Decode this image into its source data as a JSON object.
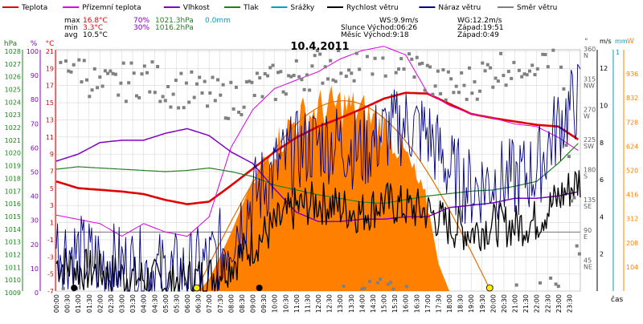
{
  "legend": [
    {
      "label": "Teplota",
      "color": "#e00000"
    },
    {
      "label": "Přízemní teplota",
      "color": "#e000e0"
    },
    {
      "label": "Vlhkost",
      "color": "#8000c0"
    },
    {
      "label": "Tlak",
      "color": "#208020"
    },
    {
      "label": "Srážky",
      "color": "#00a0c0"
    },
    {
      "label": "Rychlost větru",
      "color": "#000000"
    },
    {
      "label": "Náraz větru",
      "color": "#000080"
    },
    {
      "label": "Směr větru",
      "color": "#808080"
    }
  ],
  "stats": {
    "max_label": "max",
    "min_label": "min",
    "avg_label": "avg",
    "max_temp": "16.8°C",
    "max_hum": "70%",
    "max_press": "1021.3hPa",
    "max_rain": "0.0mm",
    "min_temp": "3.3°C",
    "min_hum": "30%",
    "min_press": "1016.2hPa",
    "avg_temp": "10.5°C"
  },
  "wind_info": {
    "ws": "WS:9.9m/s",
    "wg": "WG:12.2m/s",
    "sun": "Slunce Východ:06:26",
    "sun_set": "Západ:19:51",
    "moon": "Měsíc  Východ:9:18",
    "moon_set": "Západ:0:49"
  },
  "title": "10.4.2011",
  "xlabel": "čas",
  "colors": {
    "temp": "#e00000",
    "ground": "#e000e0",
    "hum": "#8000c0",
    "press": "#208020",
    "rain": "#00a0c0",
    "wind": "#000000",
    "gust": "#000080",
    "dir": "#808080",
    "solar": "#ff8000",
    "grid": "#d8d8d8"
  },
  "chart_data": {
    "type": "line",
    "title": "10.4.2011",
    "x_range": [
      "00:00",
      "24:00"
    ],
    "x_ticks": [
      "00:00",
      "00:30",
      "01:00",
      "01:30",
      "02:00",
      "02:30",
      "03:00",
      "03:30",
      "04:00",
      "04:30",
      "05:00",
      "05:30",
      "06:00",
      "06:30",
      "07:00",
      "07:30",
      "08:00",
      "08:30",
      "09:00",
      "09:30",
      "10:00",
      "10:30",
      "11:00",
      "11:30",
      "12:00",
      "12:30",
      "13:00",
      "13:30",
      "14:00",
      "14:30",
      "15:00",
      "15:30",
      "16:00",
      "16:30",
      "17:00",
      "17:30",
      "18:00",
      "18:30",
      "19:00",
      "19:30",
      "20:00",
      "20:30",
      "21:00",
      "21:30",
      "22:00",
      "22:30",
      "23:00",
      "23:30"
    ],
    "axes": {
      "pressure": {
        "unit": "hPa",
        "ticks": [
          "1028",
          "1027",
          "1026",
          "1025",
          "1024",
          "1023",
          "1022",
          "1021",
          "1020",
          "1019",
          "1018",
          "1017",
          "1016",
          "1015",
          "1014",
          "1013",
          "1012",
          "1011",
          "1010",
          "1009"
        ]
      },
      "humidity": {
        "unit": "%",
        "ticks": [
          "100",
          "90",
          "80",
          "70",
          "60",
          "50",
          "40",
          "30",
          "20",
          "10",
          "0"
        ]
      },
      "temperature": {
        "unit": "°C",
        "ticks": [
          "21",
          "19",
          "17",
          "15",
          "13",
          "11",
          "9",
          "7",
          "5",
          "3",
          "1",
          "-1",
          "-3",
          "-5",
          "-7"
        ]
      },
      "wind_direction": {
        "unit": "°",
        "ticks": [
          {
            "v": "360",
            "d": "N"
          },
          {
            "v": "315",
            "d": "NW"
          },
          {
            "v": "270",
            "d": "W"
          },
          {
            "v": "225",
            "d": "SW"
          },
          {
            "v": "180",
            "d": "S"
          },
          {
            "v": "135",
            "d": "SE"
          },
          {
            "v": "90",
            "d": "E"
          },
          {
            "v": "45",
            "d": "NE"
          }
        ]
      },
      "wind_speed": {
        "unit": "m/s",
        "ticks": [
          "12",
          "10",
          "8",
          "6",
          "4",
          "2"
        ]
      },
      "rain": {
        "unit": "mm",
        "ticks": [
          "1"
        ]
      },
      "solar": {
        "unit": "W",
        "ticks": [
          "936",
          "832",
          "728",
          "624",
          "520",
          "416",
          "312",
          "208",
          "104"
        ]
      }
    },
    "series": [
      {
        "name": "Teplota",
        "unit": "°C",
        "t": [
          0,
          1,
          2,
          3,
          4,
          5,
          6,
          7,
          8,
          9,
          10,
          11,
          12,
          13,
          14,
          15,
          16,
          17,
          18,
          19,
          20,
          21,
          22,
          23,
          24
        ],
        "values": [
          6,
          5.2,
          5,
          4.8,
          4.5,
          3.8,
          3.3,
          3.6,
          5.5,
          7.5,
          9.5,
          11.2,
          12.5,
          13.5,
          14.6,
          15.8,
          16.5,
          16.4,
          15.2,
          14,
          13.5,
          13.1,
          12.7,
          12.5,
          10.8
        ]
      },
      {
        "name": "Přízemní teplota",
        "unit": "°C",
        "t": [
          0,
          1,
          2,
          3,
          4,
          5,
          6,
          7,
          8,
          9,
          10,
          11,
          12,
          13,
          14,
          15,
          16,
          17,
          18,
          19,
          20,
          21,
          22,
          23,
          24
        ],
        "values": [
          2,
          1.5,
          1,
          -0.5,
          1,
          0,
          -0.5,
          1.8,
          10,
          14.5,
          17,
          18,
          19,
          20.5,
          21.5,
          22,
          21,
          16.5,
          15,
          14,
          13.5,
          12.8,
          12.5,
          11.2,
          9.5
        ]
      },
      {
        "name": "Vlhkost",
        "unit": "%",
        "t": [
          0,
          1,
          2,
          3,
          4,
          5,
          6,
          7,
          8,
          9,
          10,
          11,
          12,
          13,
          14,
          15,
          16,
          17,
          18,
          19,
          20,
          21,
          22,
          23,
          24
        ],
        "values": [
          56,
          59,
          64,
          65,
          65,
          68,
          70,
          67,
          60,
          55,
          44,
          34,
          30,
          30,
          31,
          31,
          32,
          32,
          36,
          37,
          38,
          40,
          40,
          41,
          43
        ]
      },
      {
        "name": "Tlak",
        "unit": "hPa",
        "t": [
          0,
          1,
          2,
          3,
          4,
          5,
          6,
          7,
          8,
          9,
          10,
          11,
          12,
          13,
          14,
          15,
          16,
          17,
          18,
          19,
          20,
          21,
          22,
          23,
          24
        ],
        "values": [
          1019,
          1019.2,
          1019.1,
          1019,
          1018.9,
          1018.8,
          1018.9,
          1019.1,
          1018.8,
          1018.4,
          1017.7,
          1017.3,
          1016.9,
          1016.6,
          1016.3,
          1016.2,
          1016.5,
          1016.8,
          1017,
          1017.2,
          1017.3,
          1017.6,
          1018,
          1019.5,
          1021.3
        ]
      },
      {
        "name": "Rychlost větru",
        "unit": "m/s",
        "t": [
          0,
          1,
          2,
          3,
          4,
          5,
          6,
          7,
          8,
          9,
          10,
          11,
          12,
          13,
          14,
          15,
          16,
          17,
          18,
          19,
          20,
          21,
          22,
          23,
          24
        ],
        "values": [
          1.5,
          1.2,
          1,
          0.8,
          0.7,
          0.5,
          0.6,
          0.8,
          1.5,
          2.5,
          3.5,
          4.5,
          4.8,
          4.5,
          4.2,
          4.8,
          4.5,
          4.3,
          3.5,
          3.2,
          3.6,
          3.5,
          3.8,
          5,
          6
        ]
      },
      {
        "name": "Náraz větru",
        "unit": "m/s",
        "t": [
          0,
          1,
          2,
          3,
          4,
          5,
          6,
          7,
          8,
          9,
          10,
          11,
          12,
          13,
          14,
          15,
          16,
          17,
          18,
          19,
          20,
          21,
          22,
          23,
          24
        ],
        "values": [
          2.5,
          2,
          1.6,
          1.4,
          1.2,
          1,
          1,
          1.5,
          3,
          5,
          6.5,
          7.5,
          8,
          8,
          7.5,
          8.5,
          9,
          8.5,
          6.5,
          5.5,
          6,
          6,
          6.5,
          9,
          10.5
        ]
      },
      {
        "name": "Směr větru",
        "unit": "°",
        "t": [
          0,
          1,
          2,
          3,
          4,
          5,
          6,
          7,
          8,
          9,
          10,
          11,
          12,
          13,
          14,
          15,
          16,
          17,
          18,
          19,
          20,
          21,
          22,
          23,
          24
        ],
        "values": [
          350,
          340,
          300,
          310,
          320,
          305,
          300,
          290,
          285,
          300,
          310,
          320,
          335,
          340,
          345,
          350,
          345,
          320,
          300,
          310,
          330,
          340,
          350,
          355,
          15
        ]
      },
      {
        "name": "Solar",
        "unit": "W",
        "t": [
          6.5,
          7,
          8,
          9,
          10,
          11,
          12,
          13,
          14,
          15,
          16,
          17,
          17.5,
          18
        ],
        "values": [
          0,
          50,
          250,
          480,
          640,
          760,
          800,
          820,
          790,
          720,
          600,
          380,
          120,
          0
        ]
      }
    ],
    "markers": [
      {
        "type": "moon",
        "time": "00:49"
      },
      {
        "type": "sunrise",
        "time": "06:26"
      },
      {
        "type": "moonrise",
        "time": "09:18"
      },
      {
        "type": "sunset",
        "time": "19:51"
      }
    ]
  }
}
